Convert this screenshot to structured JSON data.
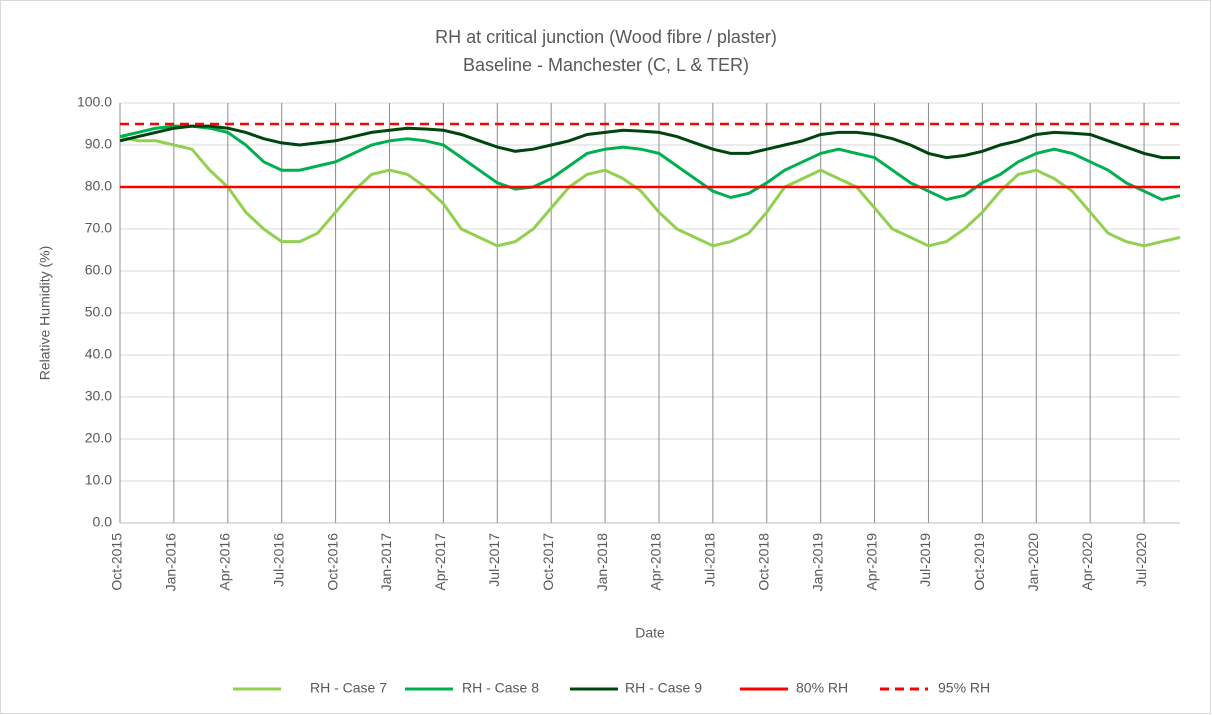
{
  "chart_data": {
    "type": "line",
    "title": "RH at critical junction (Wood fibre / plaster)",
    "subtitle": "Baseline - Manchester (C, L & TER)",
    "x_label": "Date",
    "y_label": "Relative Humidity (%)",
    "categories": [
      "Oct-2015",
      null,
      null,
      "Jan-2016",
      null,
      null,
      "Apr-2016",
      null,
      null,
      "Jul-2016",
      null,
      null,
      "Oct-2016",
      null,
      null,
      "Jan-2017",
      null,
      null,
      "Apr-2017",
      null,
      null,
      "Jul-2017",
      null,
      null,
      "Oct-2017",
      null,
      null,
      "Jan-2018",
      null,
      null,
      "Apr-2018",
      null,
      null,
      "Jul-2018",
      null,
      null,
      "Oct-2018",
      null,
      null,
      "Jan-2019",
      null,
      null,
      "Apr-2019",
      null,
      null,
      "Jul-2019",
      null,
      null,
      "Oct-2019",
      null,
      null,
      "Jan-2020",
      null,
      null,
      "Apr-2020",
      null,
      null,
      "Jul-2020",
      null,
      null
    ],
    "ylim": [
      0,
      100
    ],
    "yticks": [
      {
        "value": 0,
        "label": "0.0"
      },
      {
        "value": 10,
        "label": "10.0"
      },
      {
        "value": 20,
        "label": "20.0"
      },
      {
        "value": 30,
        "label": "30.0"
      },
      {
        "value": 40,
        "label": "40.0"
      },
      {
        "value": 50,
        "label": "50.0"
      },
      {
        "value": 60,
        "label": "60.0"
      },
      {
        "value": 70,
        "label": "70.0"
      },
      {
        "value": 80,
        "label": "80.0"
      },
      {
        "value": 90,
        "label": "90.0"
      },
      {
        "value": 100,
        "label": "100.0"
      }
    ],
    "grid": true,
    "legend": "bottom",
    "series": [
      {
        "name": "RH - Case 7",
        "color": "#92d050",
        "values": [
          92,
          91,
          91,
          90,
          89,
          84,
          80,
          74,
          70,
          67,
          67,
          69,
          74,
          79,
          83,
          84,
          83,
          80,
          76,
          70,
          68,
          66,
          67,
          70,
          75,
          80,
          83,
          84,
          82,
          79,
          74,
          70,
          68,
          66,
          67,
          69,
          74,
          80,
          82,
          84,
          82,
          80,
          75,
          70,
          68,
          66,
          67,
          70,
          74,
          79,
          83,
          84,
          82,
          79,
          74,
          69,
          67,
          66,
          67,
          68
        ]
      },
      {
        "name": "RH - Case 8",
        "color": "#00b050",
        "values": [
          92,
          93,
          94,
          94.5,
          94.5,
          94,
          93,
          90,
          86,
          84,
          84,
          85,
          86,
          88,
          90,
          91,
          91.5,
          91,
          90,
          87,
          84,
          81,
          79.5,
          80,
          82,
          85,
          88,
          89,
          89.5,
          89,
          88,
          85,
          82,
          79,
          77.5,
          78.5,
          81,
          84,
          86,
          88,
          89,
          88,
          87,
          84,
          81,
          79,
          77,
          78,
          81,
          83,
          86,
          88,
          89,
          88,
          86,
          84,
          81,
          79,
          77,
          78
        ]
      },
      {
        "name": "RH - Case 9",
        "color": "#00450f",
        "values": [
          91,
          92,
          93,
          94,
          94.5,
          94.5,
          94,
          93,
          91.5,
          90.5,
          90,
          90.5,
          91,
          92,
          93,
          93.5,
          94,
          93.8,
          93.5,
          92.5,
          91,
          89.5,
          88.5,
          89,
          90,
          91,
          92.5,
          93,
          93.5,
          93.3,
          93,
          92,
          90.5,
          89,
          88,
          88,
          89,
          90,
          91,
          92.5,
          93,
          93,
          92.5,
          91.5,
          90,
          88,
          87,
          87.5,
          88.5,
          90,
          91,
          92.5,
          93,
          92.8,
          92.5,
          91,
          89.5,
          88,
          87,
          87
        ]
      },
      {
        "name": "80% RH",
        "color": "#ff0000",
        "dash": false,
        "values": [
          80,
          80,
          80,
          80,
          80,
          80,
          80,
          80,
          80,
          80,
          80,
          80,
          80,
          80,
          80,
          80,
          80,
          80,
          80,
          80,
          80,
          80,
          80,
          80,
          80,
          80,
          80,
          80,
          80,
          80,
          80,
          80,
          80,
          80,
          80,
          80,
          80,
          80,
          80,
          80,
          80,
          80,
          80,
          80,
          80,
          80,
          80,
          80,
          80,
          80,
          80,
          80,
          80,
          80,
          80,
          80,
          80,
          80,
          80,
          80
        ]
      },
      {
        "name": "95% RH",
        "color": "#ff0000",
        "dash": true,
        "values": [
          95,
          95,
          95,
          95,
          95,
          95,
          95,
          95,
          95,
          95,
          95,
          95,
          95,
          95,
          95,
          95,
          95,
          95,
          95,
          95,
          95,
          95,
          95,
          95,
          95,
          95,
          95,
          95,
          95,
          95,
          95,
          95,
          95,
          95,
          95,
          95,
          95,
          95,
          95,
          95,
          95,
          95,
          95,
          95,
          95,
          95,
          95,
          95,
          95,
          95,
          95,
          95,
          95,
          95,
          95,
          95,
          95,
          95,
          95,
          95
        ]
      }
    ]
  }
}
